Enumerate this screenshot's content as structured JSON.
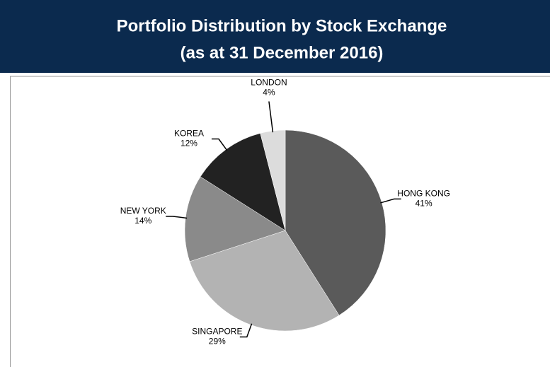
{
  "chart_data": {
    "type": "pie",
    "title": "Portfolio Distribution by Stock Exchange",
    "subtitle": "(as at 31 December 2016)",
    "categories": [
      "HONG KONG",
      "SINGAPORE",
      "NEW YORK",
      "KOREA",
      "LONDON"
    ],
    "values": [
      41,
      29,
      14,
      12,
      4
    ],
    "value_labels": [
      "41%",
      "29%",
      "14%",
      "12%",
      "4%"
    ],
    "colors": [
      "#5a5a5a",
      "#b3b3b3",
      "#8a8a8a",
      "#222222",
      "#dcdcdc"
    ]
  }
}
